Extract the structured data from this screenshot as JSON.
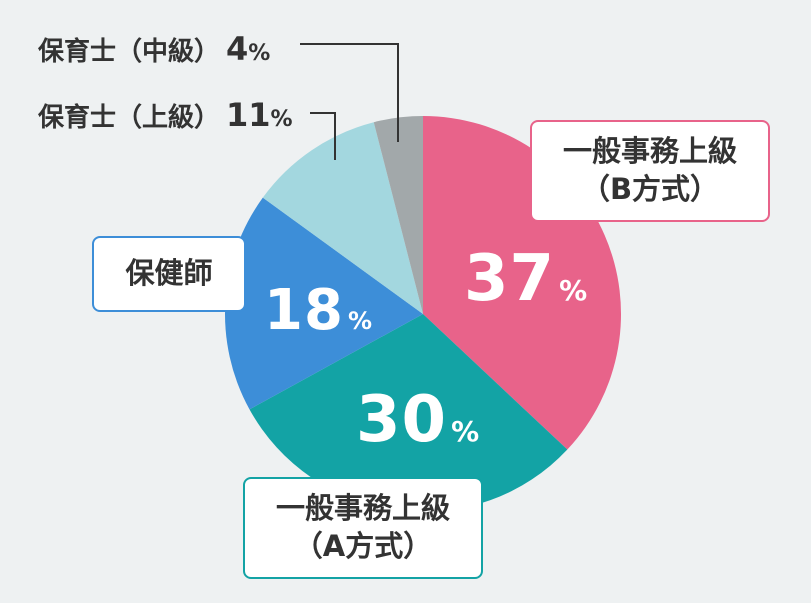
{
  "chart_data": {
    "type": "pie",
    "slices": [
      {
        "label_lines": [
          "一般事務上級",
          "（B方式）"
        ],
        "value": 37,
        "display": "37",
        "unit": "%",
        "color": "#e8638a"
      },
      {
        "label_lines": [
          "一般事務上級",
          "（A方式）"
        ],
        "value": 30,
        "display": "30",
        "unit": "%",
        "color": "#13a3a5"
      },
      {
        "label_lines": [
          "保健師"
        ],
        "value": 18,
        "display": "18",
        "unit": "%",
        "color": "#3d8ed8"
      },
      {
        "label_lines": [
          "保育士（上級）"
        ],
        "value": 11,
        "display": "11",
        "unit": "%",
        "color": "#a3d7df"
      },
      {
        "label_lines": [
          "保育士（中級）"
        ],
        "value": 4,
        "display": "4",
        "unit": "%",
        "color": "#a2a8aa"
      }
    ]
  }
}
